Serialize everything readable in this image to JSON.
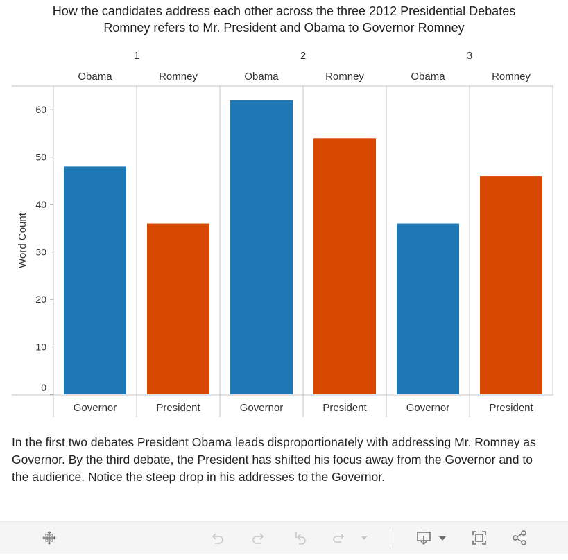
{
  "chart_data": {
    "type": "bar",
    "title": "How the candidates address each other across the three 2012 Presidential Debates",
    "subtitle": "Romney refers to Mr. President and Obama to Governor Romney",
    "ylabel": "Word Count",
    "ylim": [
      0,
      65
    ],
    "yticks": [
      0,
      10,
      20,
      30,
      40,
      50,
      60
    ],
    "grid": false,
    "columns": [
      {
        "debate": "1",
        "speaker": "Obama",
        "category": "Governor",
        "value": 48,
        "color": "#1f77b4"
      },
      {
        "debate": "1",
        "speaker": "Romney",
        "category": "President",
        "value": 36,
        "color": "#d94801"
      },
      {
        "debate": "2",
        "speaker": "Obama",
        "category": "Governor",
        "value": 62,
        "color": "#1f77b4"
      },
      {
        "debate": "2",
        "speaker": "Romney",
        "category": "President",
        "value": 54,
        "color": "#d94801"
      },
      {
        "debate": "3",
        "speaker": "Obama",
        "category": "Governor",
        "value": 36,
        "color": "#1f77b4"
      },
      {
        "debate": "3",
        "speaker": "Romney",
        "category": "President",
        "value": 46,
        "color": "#d94801"
      }
    ]
  },
  "narrative": "In the first two debates President Obama leads  disproportionately with addressing Mr. Romney as Governor.  By the third debate, the President has shifted his focus away from the Governor and to the audience.  Notice the steep drop in his addresses to the Governor.",
  "toolbar": {
    "icons": [
      "move-icon",
      "undo-icon",
      "redo-icon",
      "revert-icon",
      "refresh-icon",
      "dropdown-icon",
      "download-icon",
      "fullscreen-icon",
      "share-icon"
    ]
  }
}
